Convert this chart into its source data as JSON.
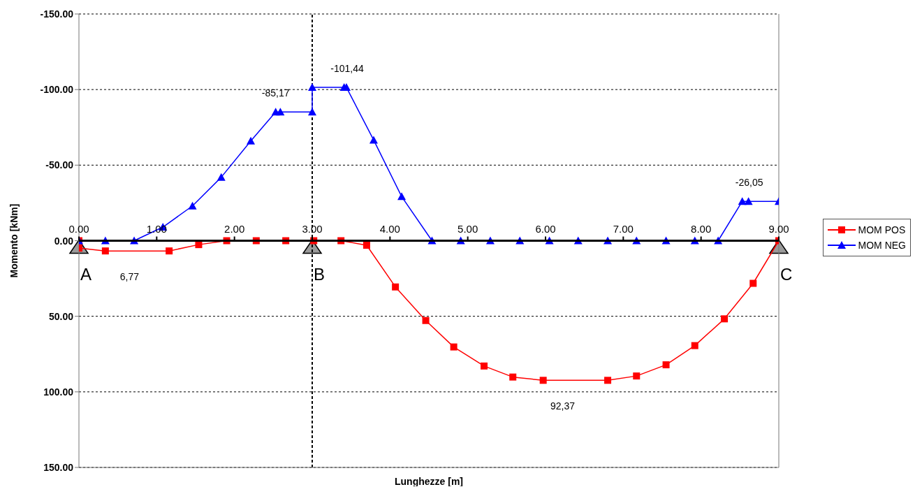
{
  "chart_data": {
    "type": "line",
    "xlabel": "Lunghezze  [m]",
    "ylabel": "Momento [kNm]",
    "xlim": [
      0,
      9
    ],
    "xticks": [
      {
        "value": 0,
        "label": "0.00"
      },
      {
        "value": 1,
        "label": "1.00"
      },
      {
        "value": 2,
        "label": "2.00"
      },
      {
        "value": 3,
        "label": "3.00"
      },
      {
        "value": 4,
        "label": "4.00"
      },
      {
        "value": 5,
        "label": "5.00"
      },
      {
        "value": 6,
        "label": "6.00"
      },
      {
        "value": 7,
        "label": "7.00"
      },
      {
        "value": 8,
        "label": "8.00"
      },
      {
        "value": 9,
        "label": "9.00"
      }
    ],
    "ylim": [
      150,
      -150
    ],
    "yticks": [
      {
        "value": -150,
        "label": "-150.00"
      },
      {
        "value": -100,
        "label": "-100.00"
      },
      {
        "value": -50,
        "label": "-50.00"
      },
      {
        "value": 0,
        "label": "0.00"
      },
      {
        "value": 50,
        "label": "50.00"
      },
      {
        "value": 100,
        "label": "100.00"
      },
      {
        "value": 150,
        "label": "150.00"
      }
    ],
    "grid": "y",
    "legend": "right",
    "line_style": "solid",
    "series": [
      {
        "name": "MOM POS",
        "color": "#ff0000",
        "marker": "square",
        "x": [
          0,
          0,
          0.34,
          1.16,
          1.54,
          1.9,
          2.28,
          2.66,
          3.02,
          3.37,
          3.7,
          4.07,
          4.46,
          4.82,
          5.21,
          5.58,
          5.97,
          6.8,
          7.17,
          7.55,
          7.92,
          8.3,
          8.67,
          9.0
        ],
        "values": [
          0,
          4.9,
          6.77,
          6.77,
          2.6,
          0,
          0,
          0,
          0,
          0,
          3,
          30.6,
          52.8,
          70.3,
          82.9,
          90.2,
          92.37,
          92.37,
          89.5,
          82.1,
          69.4,
          51.7,
          28.2,
          0
        ]
      },
      {
        "name": "MOM NEG",
        "color": "#0000ff",
        "marker": "triangle",
        "x": [
          0,
          0.34,
          0.71,
          1.08,
          1.46,
          1.83,
          2.21,
          2.53,
          2.59,
          3.0,
          3.0,
          3.41,
          3.44,
          3.79,
          4.15,
          4.54,
          4.91,
          5.29,
          5.67,
          6.05,
          6.42,
          6.8,
          7.17,
          7.55,
          7.92,
          8.22,
          8.53,
          8.61,
          9.0
        ],
        "values": [
          0,
          0,
          0,
          -9,
          -23,
          -42,
          -66,
          -85.17,
          -85.17,
          -85.17,
          -101.44,
          -101.44,
          -101.44,
          -66.6,
          -29.2,
          0,
          0,
          0,
          0,
          0,
          0,
          0,
          0,
          0,
          0,
          0,
          -26.05,
          -26.05,
          -26.05
        ]
      }
    ],
    "ref_lines": [
      {
        "axis": "x",
        "value": 3,
        "color": "#000000",
        "line_style": "dashed"
      }
    ],
    "annotations": [
      {
        "text": "-85,17",
        "x": 2.53,
        "y": -85.17
      },
      {
        "text": "-101,44",
        "x": 3.45,
        "y": -101.44
      },
      {
        "text": "-26,05",
        "x": 8.62,
        "y": -26.05
      },
      {
        "text": "6,77",
        "x": 0.65,
        "y": 6.77
      },
      {
        "text": "92,37",
        "x": 6.22,
        "y": 92.37
      },
      {
        "text": "A",
        "x": 0,
        "y": 0
      },
      {
        "text": "B",
        "x": 3,
        "y": 0
      },
      {
        "text": "C",
        "x": 9,
        "y": 0
      }
    ]
  }
}
